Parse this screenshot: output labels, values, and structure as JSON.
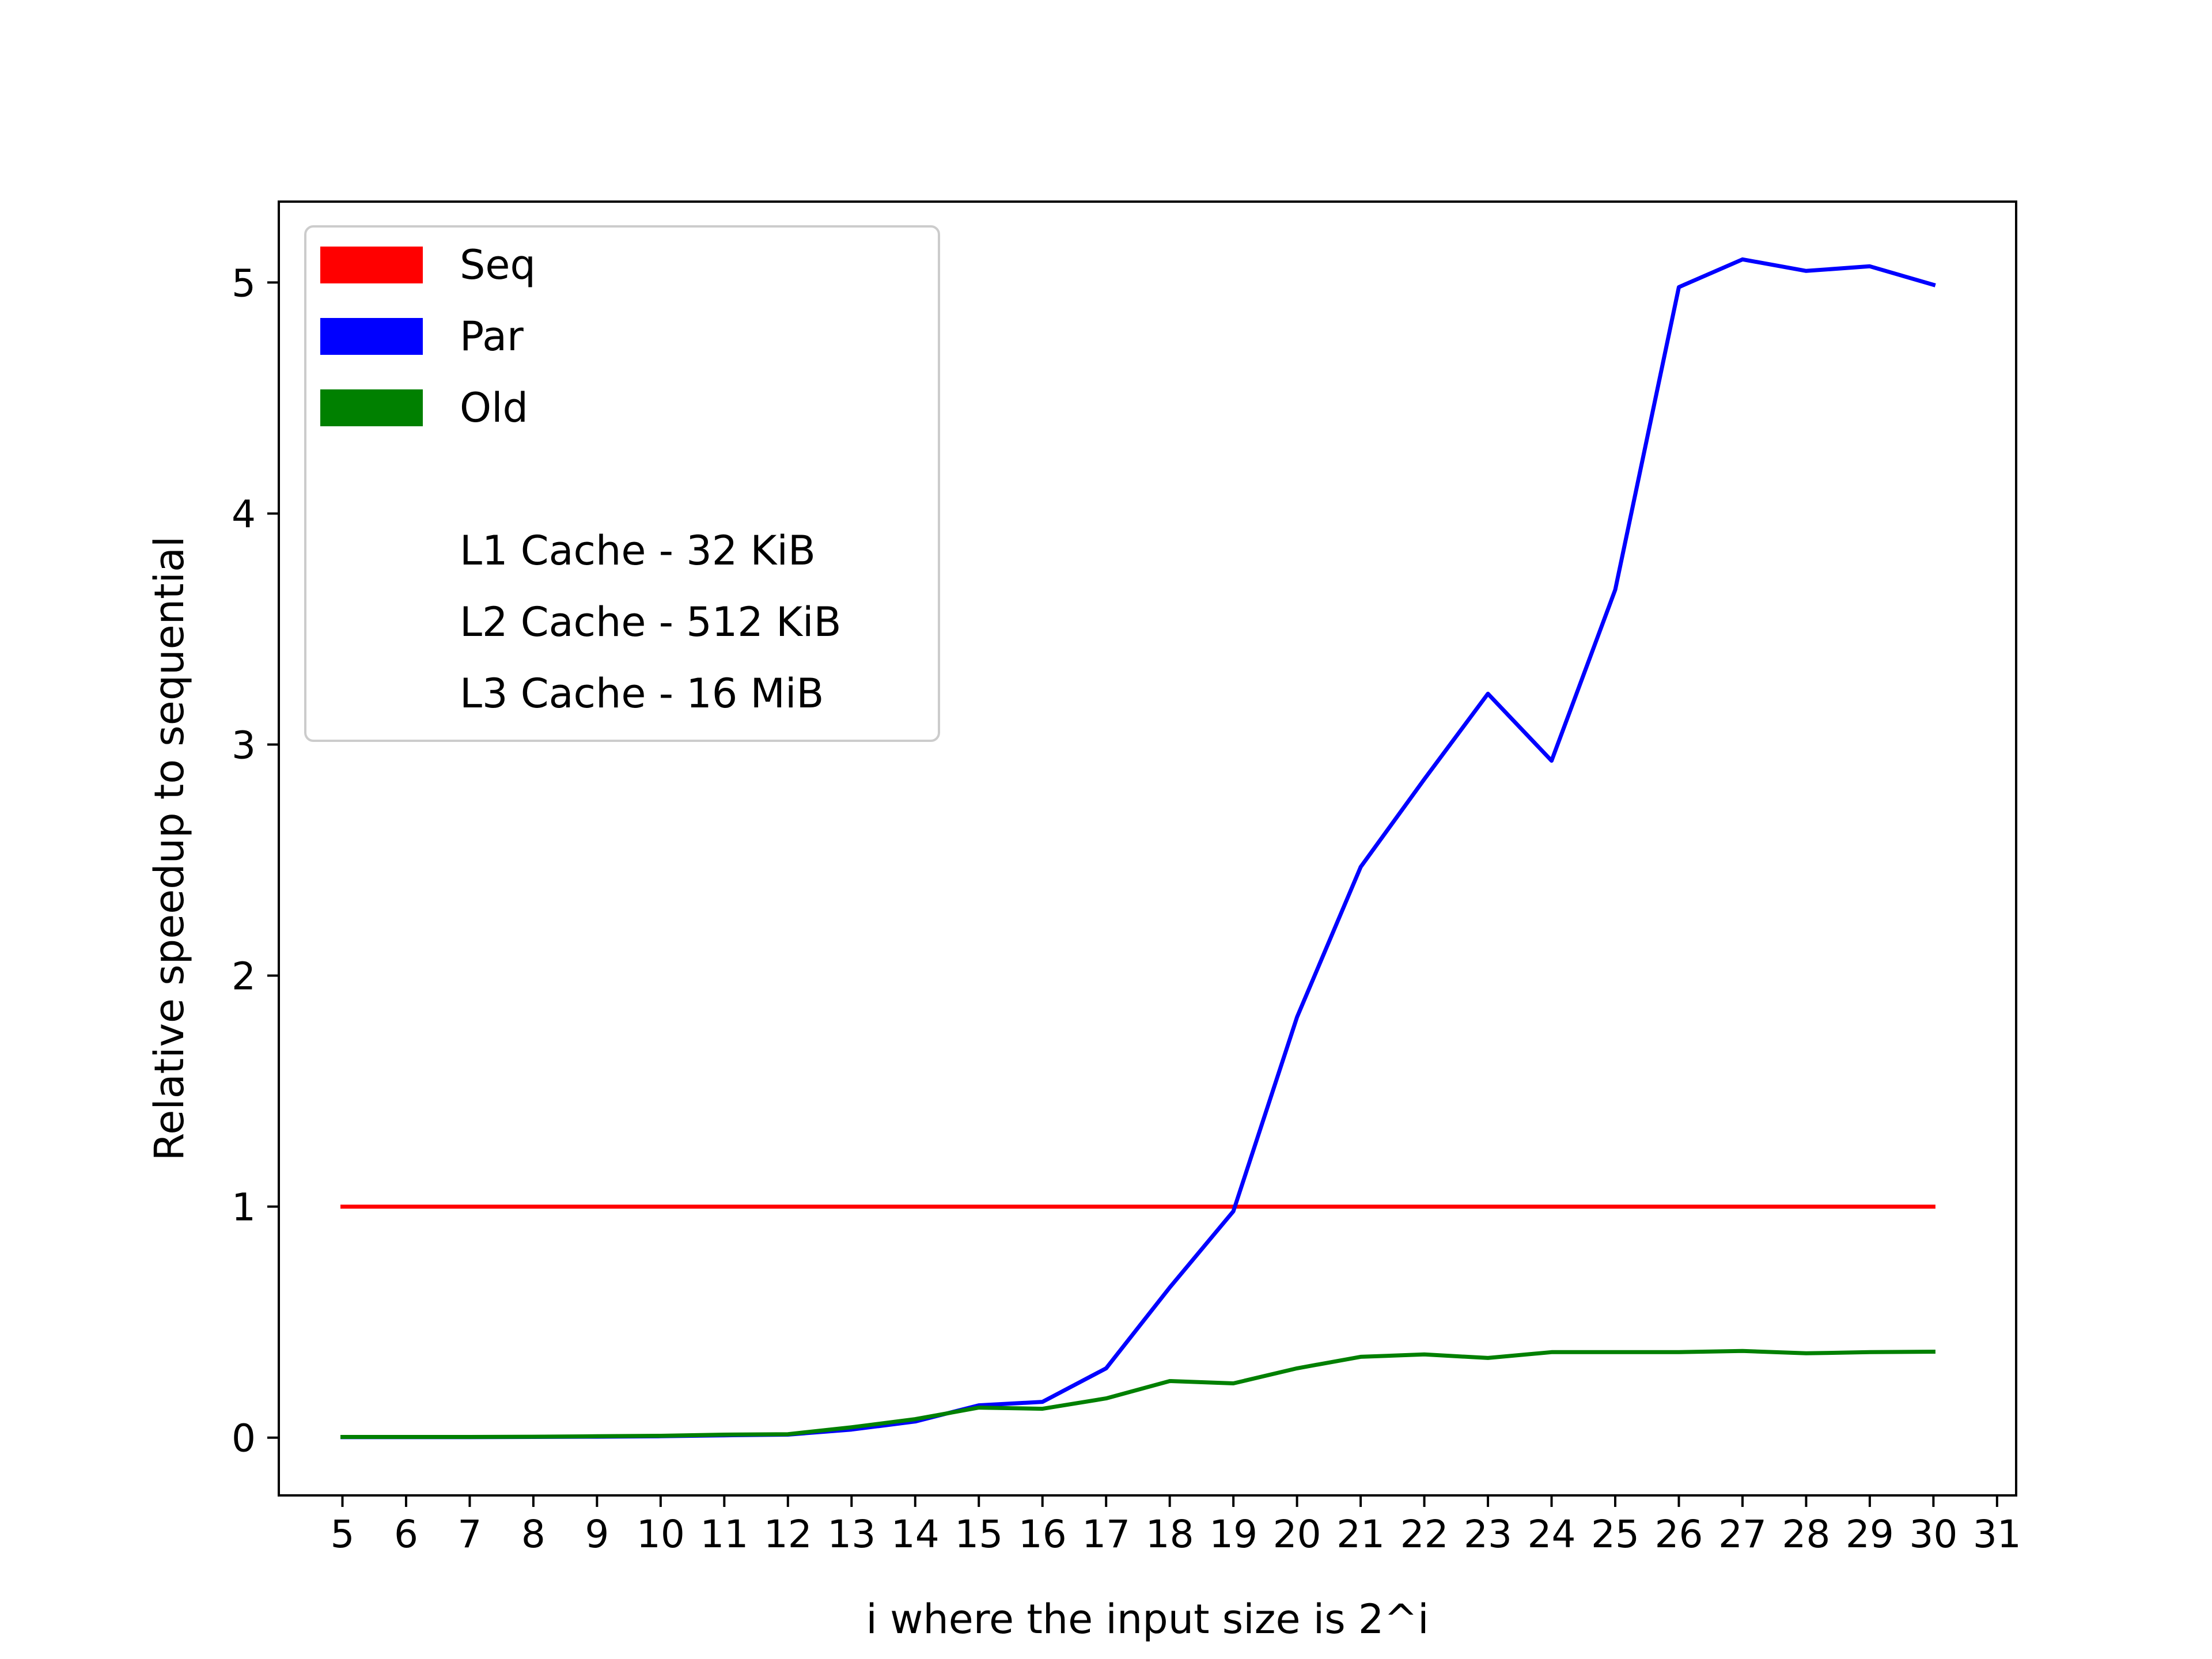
{
  "chart_data": {
    "type": "line",
    "title": "",
    "xlabel": "i where the input size is 2^i",
    "ylabel": "Relative speedup to sequential",
    "x": [
      5,
      6,
      7,
      8,
      9,
      10,
      11,
      12,
      13,
      14,
      15,
      16,
      17,
      18,
      19,
      20,
      21,
      22,
      23,
      24,
      25,
      26,
      27,
      28,
      29,
      30
    ],
    "xticks": [
      5,
      6,
      7,
      8,
      9,
      10,
      11,
      12,
      13,
      14,
      15,
      16,
      17,
      18,
      19,
      20,
      21,
      22,
      23,
      24,
      25,
      26,
      27,
      28,
      29,
      30,
      31
    ],
    "yticks": [
      0,
      1,
      2,
      3,
      4,
      5
    ],
    "xlim": [
      4.0,
      31.3
    ],
    "ylim": [
      -0.25,
      5.35
    ],
    "grid": false,
    "legend_position": "top-left",
    "series": [
      {
        "name": "Seq",
        "color": "#ff0000",
        "values": [
          1,
          1,
          1,
          1,
          1,
          1,
          1,
          1,
          1,
          1,
          1,
          1,
          1,
          1,
          1,
          1,
          1,
          1,
          1,
          1,
          1,
          1,
          1,
          1,
          1,
          1
        ]
      },
      {
        "name": "Par",
        "color": "#0000ff",
        "values": [
          0.002,
          0.002,
          0.002,
          0.003,
          0.004,
          0.006,
          0.01,
          0.013,
          0.035,
          0.07,
          0.14,
          0.155,
          0.3,
          0.65,
          0.98,
          1.82,
          2.47,
          2.85,
          3.22,
          2.93,
          3.67,
          4.98,
          5.1,
          5.05,
          5.07,
          4.99
        ]
      },
      {
        "name": "Old",
        "color": "#008000",
        "values": [
          0.003,
          0.003,
          0.003,
          0.004,
          0.006,
          0.008,
          0.013,
          0.015,
          0.045,
          0.08,
          0.13,
          0.125,
          0.17,
          0.245,
          0.235,
          0.3,
          0.35,
          0.36,
          0.345,
          0.37,
          0.37,
          0.37,
          0.375,
          0.365,
          0.37,
          0.372
        ]
      }
    ],
    "legend_notes": [
      "L1 Cache - 32 KiB",
      "L2 Cache - 512 KiB",
      "L3 Cache - 16 MiB"
    ]
  }
}
